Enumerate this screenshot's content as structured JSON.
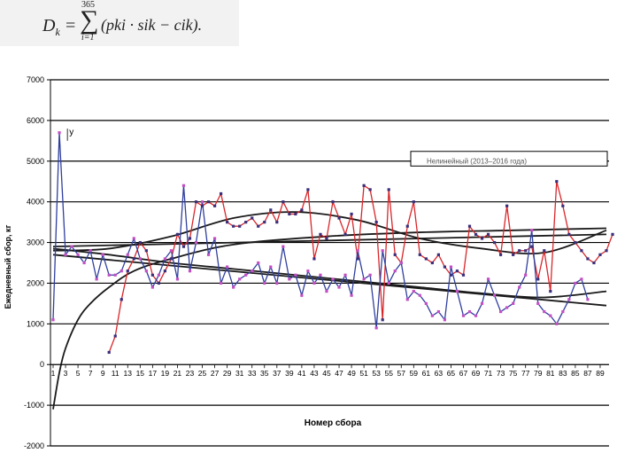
{
  "formula": {
    "lhs": "D",
    "lhs_sub": "k",
    "equals": " =",
    "sum_symbol": "∑",
    "upper": "365",
    "lower": "i=1",
    "rhs": "(p",
    "rhs_full": "(pki · sik − cik)."
  },
  "chart_data": {
    "type": "line",
    "title": "",
    "xlabel": "Номер сбора",
    "ylabel": "Ежедневный сбор, кг",
    "ylim": [
      -2000,
      7000
    ],
    "yticks": [
      -2000,
      -1000,
      0,
      1000,
      2000,
      3000,
      4000,
      5000,
      6000,
      7000
    ],
    "xticks": [
      1,
      3,
      5,
      7,
      9,
      11,
      13,
      15,
      17,
      19,
      21,
      23,
      25,
      27,
      29,
      31,
      33,
      35,
      37,
      39,
      41,
      43,
      45,
      47,
      49,
      51,
      53,
      55,
      57,
      59,
      61,
      63,
      65,
      67,
      69,
      71,
      73,
      75,
      77,
      79,
      81,
      83,
      85,
      87,
      89
    ],
    "xlim": [
      1,
      90
    ],
    "grid": "horizontal",
    "y_marker": "у",
    "legend_box_text": "Нелинейный (2013–2016 года)",
    "series": [
      {
        "color": "#d9262a",
        "marker_color": "#3a2f7a",
        "x_start": 10,
        "values": [
          300,
          700,
          1600,
          2300,
          2600,
          3000,
          2800,
          2200,
          2000,
          2300,
          2600,
          3200,
          2900,
          3100,
          4000,
          3900,
          4000,
          3900,
          4200,
          3500,
          3400,
          3400,
          3500,
          3600,
          3400,
          3500,
          3800,
          3500,
          4000,
          3700,
          3700,
          3800,
          4300,
          2600,
          3200,
          3100,
          4000,
          3600,
          3200,
          3700,
          2600,
          4400,
          4300,
          3500,
          1100,
          4300,
          2700,
          2500,
          3400,
          4000,
          2700,
          2600,
          2500,
          2700,
          2400,
          2200,
          2300,
          2200,
          3400,
          3200,
          3100,
          3200,
          3000,
          2700,
          3900,
          2700,
          2800,
          2800,
          2900,
          2100,
          2800,
          1800,
          4500,
          3900,
          3200,
          3000,
          2800,
          2600,
          2500,
          2700,
          2800,
          3200
        ]
      },
      {
        "color": "#2f3f9e",
        "marker_color": "#c24fc4",
        "x_start": 1,
        "values": [
          1100,
          5700,
          2700,
          2900,
          2700,
          2500,
          2800,
          2100,
          2700,
          2200,
          2200,
          2300,
          2700,
          3100,
          2600,
          2300,
          1900,
          2200,
          2600,
          2800,
          2100,
          4400,
          2300,
          3000,
          4000,
          2700,
          3100,
          2000,
          2400,
          1900,
          2100,
          2200,
          2300,
          2500,
          2000,
          2400,
          2000,
          2900,
          2100,
          2200,
          1700,
          2300,
          2000,
          2200,
          1800,
          2100,
          1900,
          2200,
          1700,
          2800,
          2100,
          2200,
          900,
          2800,
          2000,
          2300,
          2500,
          1600,
          1800,
          1700,
          1500,
          1200,
          1300,
          1100,
          2400,
          1800,
          1200,
          1300,
          1200,
          1500,
          2100,
          1700,
          1300,
          1400,
          1500,
          1900,
          2200,
          3300,
          1500,
          1300,
          1200,
          1000,
          1300,
          1600,
          2000,
          2100,
          1600
        ]
      }
    ],
    "trends": [
      {
        "kind": "polynomial-red",
        "x": [
          1,
          10,
          20,
          30,
          40,
          50,
          60,
          70,
          80,
          90
        ],
        "values": [
          2800,
          2850,
          3150,
          3600,
          3750,
          3550,
          3100,
          2850,
          2750,
          3300
        ]
      },
      {
        "kind": "linear-red",
        "x": [
          1,
          90
        ],
        "values": [
          2900,
          3200
        ]
      },
      {
        "kind": "linear-blue",
        "x": [
          1,
          90
        ],
        "values": [
          2700,
          1450
        ]
      },
      {
        "kind": "polynomial-blue",
        "x": [
          1,
          10,
          20,
          30,
          40,
          50,
          60,
          70,
          80,
          90
        ],
        "values": [
          2850,
          2700,
          2500,
          2350,
          2200,
          2050,
          1900,
          1750,
          1650,
          1800
        ]
      },
      {
        "kind": "log",
        "x": [
          1,
          2,
          3,
          5,
          7,
          10,
          14,
          20,
          30,
          45,
          60,
          75,
          90
        ],
        "values": [
          -1100,
          -200,
          400,
          1100,
          1500,
          1900,
          2300,
          2600,
          2950,
          3150,
          3250,
          3300,
          3350
        ]
      }
    ]
  }
}
